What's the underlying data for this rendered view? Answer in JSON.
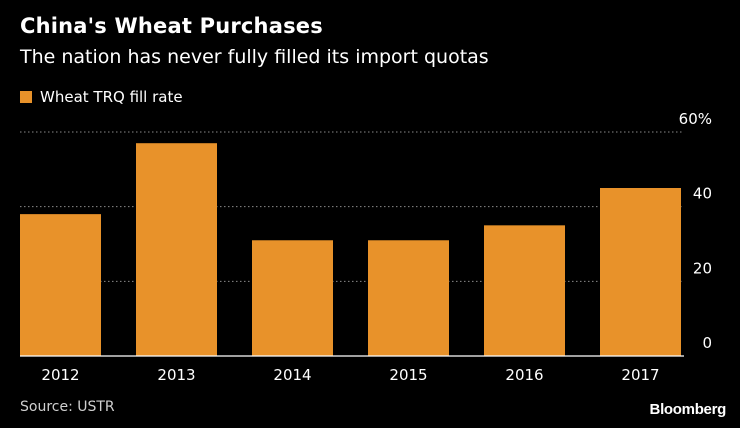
{
  "header": {
    "title": "China's Wheat Purchases",
    "subtitle": "The nation has never fully filled its import quotas"
  },
  "colors": {
    "bar": "#E8922A",
    "grid": "#8a8a8a",
    "axis": "#ffffff",
    "background": "#000000"
  },
  "chart_data": {
    "type": "bar",
    "title": "China's Wheat Purchases",
    "subtitle": "The nation has never fully filled its import quotas",
    "categories": [
      "2012",
      "2013",
      "2014",
      "2015",
      "2016",
      "2017"
    ],
    "series": [
      {
        "name": "Wheat TRQ fill rate",
        "values": [
          38,
          57,
          31,
          31,
          35,
          45
        ]
      }
    ],
    "ylim": [
      0,
      60
    ],
    "yticks": [
      0,
      20,
      40,
      60
    ],
    "ytick_labels": [
      "0",
      "20",
      "40",
      "60%"
    ],
    "grid": true,
    "legend_position": "top-left",
    "y_axis_side": "right",
    "xlabel": "",
    "ylabel": ""
  },
  "footer": {
    "source": "Source: USTR",
    "brand": "Bloomberg"
  }
}
